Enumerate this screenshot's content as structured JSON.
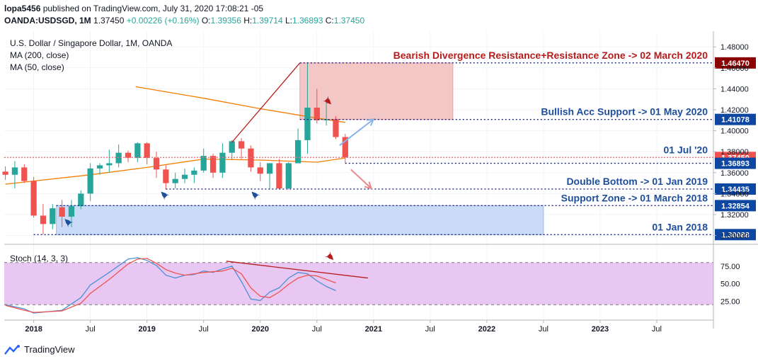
{
  "header": {
    "publisher": "lopa5456",
    "published_text": " published on TradingView.com, July 31, 2020 17:08:21 -05",
    "symbol": "OANDA:USDSGD, 1M",
    "last": "1.37450",
    "change": "+0.00226 (+0.16%)",
    "open_label": "O:",
    "open": "1.39356",
    "high_label": "H:",
    "high": "1.39714",
    "low_label": "L:",
    "low": "1.36893",
    "close_label": "C:",
    "close": "1.37450"
  },
  "legend": {
    "title": "U.S. Dollar / Singapore Dollar, 1M, OANDA",
    "ma200": "MA (200, close)",
    "ma50": "MA (50, close)",
    "stoch": "Stoch (14, 3, 3)"
  },
  "footer": {
    "brand": "TradingView"
  },
  "colors": {
    "up": "#26a69a",
    "down": "#ef5350",
    "ma50": "#f57c00",
    "resistance_zone": "#f4c7c7",
    "support_zone": "#c9dbf6",
    "stoch_band": "#e8c8f2",
    "stoch_k": "#4a8fd6",
    "stoch_d": "#ef5350",
    "annot_red": "#b71c1c",
    "annot_blue": "#1e4e9c",
    "tag_red": "#8b0000",
    "tag_blue": "#0d47a1"
  },
  "chart_data": {
    "type": "candlestick",
    "title": "U.S. Dollar / Singapore Dollar, 1M, OANDA",
    "price_ylim": [
      1.295,
      1.495
    ],
    "price_ticks": [
      "1.48000",
      "1.46000",
      "1.44000",
      "1.42000",
      "1.40000",
      "1.38000",
      "1.36000",
      "1.34000",
      "1.32000",
      "1.30000"
    ],
    "x_ticks": [
      {
        "label": "2018",
        "t": 2018.0
      },
      {
        "label": "Jul",
        "t": 2018.5
      },
      {
        "label": "2019",
        "t": 2019.0
      },
      {
        "label": "Jul",
        "t": 2019.5
      },
      {
        "label": "2020",
        "t": 2020.0
      },
      {
        "label": "Jul",
        "t": 2020.5
      },
      {
        "label": "2021",
        "t": 2021.0
      },
      {
        "label": "Jul",
        "t": 2021.5
      },
      {
        "label": "2022",
        "t": 2022.0
      },
      {
        "label": "Jul",
        "t": 2022.5
      },
      {
        "label": "2023",
        "t": 2023.0
      },
      {
        "label": "Jul",
        "t": 2023.5
      }
    ],
    "x_range": [
      2017.74,
      2024.0
    ],
    "candles": [
      {
        "t": 2017.75,
        "o": 1.361,
        "h": 1.366,
        "l": 1.353,
        "c": 1.358
      },
      {
        "t": 2017.8333,
        "o": 1.358,
        "h": 1.371,
        "l": 1.345,
        "c": 1.365
      },
      {
        "t": 2017.9167,
        "o": 1.365,
        "h": 1.368,
        "l": 1.35,
        "c": 1.352
      },
      {
        "t": 2018.0,
        "o": 1.352,
        "h": 1.356,
        "l": 1.317,
        "c": 1.319
      },
      {
        "t": 2018.0833,
        "o": 1.319,
        "h": 1.33,
        "l": 1.301,
        "c": 1.311
      },
      {
        "t": 2018.1667,
        "o": 1.311,
        "h": 1.33,
        "l": 1.306,
        "c": 1.326
      },
      {
        "t": 2018.25,
        "o": 1.327,
        "h": 1.334,
        "l": 1.308,
        "c": 1.318
      },
      {
        "t": 2018.3333,
        "o": 1.318,
        "h": 1.334,
        "l": 1.308,
        "c": 1.328
      },
      {
        "t": 2018.4167,
        "o": 1.328,
        "h": 1.343,
        "l": 1.325,
        "c": 1.34
      },
      {
        "t": 2018.5,
        "o": 1.34,
        "h": 1.369,
        "l": 1.333,
        "c": 1.364
      },
      {
        "t": 2018.5833,
        "o": 1.364,
        "h": 1.369,
        "l": 1.358,
        "c": 1.367
      },
      {
        "t": 2018.6667,
        "o": 1.367,
        "h": 1.382,
        "l": 1.36,
        "c": 1.369
      },
      {
        "t": 2018.75,
        "o": 1.369,
        "h": 1.387,
        "l": 1.365,
        "c": 1.379
      },
      {
        "t": 2018.8333,
        "o": 1.379,
        "h": 1.381,
        "l": 1.37,
        "c": 1.374
      },
      {
        "t": 2018.9167,
        "o": 1.374,
        "h": 1.389,
        "l": 1.37,
        "c": 1.388
      },
      {
        "t": 2019.0,
        "o": 1.388,
        "h": 1.389,
        "l": 1.368,
        "c": 1.374
      },
      {
        "t": 2019.0833,
        "o": 1.374,
        "h": 1.38,
        "l": 1.355,
        "c": 1.363
      },
      {
        "t": 2019.1667,
        "o": 1.363,
        "h": 1.367,
        "l": 1.344,
        "c": 1.35
      },
      {
        "t": 2019.25,
        "o": 1.35,
        "h": 1.36,
        "l": 1.345,
        "c": 1.354
      },
      {
        "t": 2019.3333,
        "o": 1.354,
        "h": 1.364,
        "l": 1.35,
        "c": 1.358
      },
      {
        "t": 2019.4167,
        "o": 1.358,
        "h": 1.365,
        "l": 1.35,
        "c": 1.362
      },
      {
        "t": 2019.5,
        "o": 1.362,
        "h": 1.383,
        "l": 1.36,
        "c": 1.376
      },
      {
        "t": 2019.5833,
        "o": 1.376,
        "h": 1.378,
        "l": 1.355,
        "c": 1.36
      },
      {
        "t": 2019.6667,
        "o": 1.36,
        "h": 1.388,
        "l": 1.355,
        "c": 1.379
      },
      {
        "t": 2019.75,
        "o": 1.379,
        "h": 1.391,
        "l": 1.372,
        "c": 1.39
      },
      {
        "t": 2019.8333,
        "o": 1.39,
        "h": 1.393,
        "l": 1.373,
        "c": 1.383
      },
      {
        "t": 2019.9167,
        "o": 1.383,
        "h": 1.386,
        "l": 1.361,
        "c": 1.365
      },
      {
        "t": 2020.0,
        "o": 1.365,
        "h": 1.37,
        "l": 1.352,
        "c": 1.359
      },
      {
        "t": 2020.0833,
        "o": 1.359,
        "h": 1.368,
        "l": 1.344,
        "c": 1.369
      },
      {
        "t": 2020.1667,
        "o": 1.369,
        "h": 1.373,
        "l": 1.344,
        "c": 1.345
      },
      {
        "t": 2020.25,
        "o": 1.345,
        "h": 1.37,
        "l": 1.344,
        "c": 1.369
      },
      {
        "t": 2020.3333,
        "o": 1.369,
        "h": 1.402,
        "l": 1.369,
        "c": 1.391
      },
      {
        "t": 2020.4167,
        "o": 1.391,
        "h": 1.465,
        "l": 1.378,
        "c": 1.422
      },
      {
        "t": 2020.5,
        "o": 1.422,
        "h": 1.44,
        "l": 1.407,
        "c": 1.41
      },
      {
        "t": 2020.5833,
        "o": 1.41,
        "h": 1.43,
        "l": 1.405,
        "c": 1.411
      },
      {
        "t": 2020.6667,
        "o": 1.411,
        "h": 1.414,
        "l": 1.392,
        "c": 1.394
      },
      {
        "t": 2020.75,
        "o": 1.394,
        "h": 1.397,
        "l": 1.369,
        "c": 1.3745
      }
    ],
    "ma50": [
      {
        "t": 2017.75,
        "v": 1.349
      },
      {
        "t": 2018.0,
        "v": 1.352
      },
      {
        "t": 2018.5,
        "v": 1.358
      },
      {
        "t": 2019.0,
        "v": 1.365
      },
      {
        "t": 2019.5,
        "v": 1.373
      },
      {
        "t": 2020.0,
        "v": 1.372
      },
      {
        "t": 2020.5,
        "v": 1.37
      },
      {
        "t": 2020.75,
        "v": 1.374
      }
    ],
    "ma200": [
      {
        "t": 2018.9,
        "v": 1.442
      },
      {
        "t": 2019.5,
        "v": 1.431
      },
      {
        "t": 2020.0,
        "v": 1.421
      },
      {
        "t": 2020.5,
        "v": 1.412
      },
      {
        "t": 2020.75,
        "v": 1.408
      }
    ],
    "stoch_ylim": [
      0,
      100
    ],
    "stoch_ticks": [
      "75.00",
      "50.00",
      "25.00"
    ],
    "stoch_bands": [
      80,
      20
    ],
    "stoch_k": [
      {
        "t": 2017.75,
        "v": 20
      },
      {
        "t": 2017.9167,
        "v": 14
      },
      {
        "t": 2018.0,
        "v": 8
      },
      {
        "t": 2018.25,
        "v": 12
      },
      {
        "t": 2018.4167,
        "v": 30
      },
      {
        "t": 2018.5,
        "v": 48
      },
      {
        "t": 2018.6667,
        "v": 66
      },
      {
        "t": 2018.8333,
        "v": 85
      },
      {
        "t": 2018.9167,
        "v": 87
      },
      {
        "t": 2019.0,
        "v": 83
      },
      {
        "t": 2019.0833,
        "v": 76
      },
      {
        "t": 2019.1667,
        "v": 62
      },
      {
        "t": 2019.25,
        "v": 58
      },
      {
        "t": 2019.3333,
        "v": 62
      },
      {
        "t": 2019.4167,
        "v": 63
      },
      {
        "t": 2019.5,
        "v": 68
      },
      {
        "t": 2019.5833,
        "v": 66
      },
      {
        "t": 2019.6667,
        "v": 71
      },
      {
        "t": 2019.75,
        "v": 75
      },
      {
        "t": 2019.8333,
        "v": 53
      },
      {
        "t": 2019.9167,
        "v": 28
      },
      {
        "t": 2020.0,
        "v": 26
      },
      {
        "t": 2020.0833,
        "v": 38
      },
      {
        "t": 2020.1667,
        "v": 44
      },
      {
        "t": 2020.25,
        "v": 58
      },
      {
        "t": 2020.3333,
        "v": 66
      },
      {
        "t": 2020.4167,
        "v": 64
      },
      {
        "t": 2020.5,
        "v": 54
      },
      {
        "t": 2020.5833,
        "v": 46
      },
      {
        "t": 2020.6667,
        "v": 40
      }
    ],
    "stoch_d": [
      {
        "t": 2017.75,
        "v": 19
      },
      {
        "t": 2017.9167,
        "v": 12
      },
      {
        "t": 2018.0,
        "v": 9
      },
      {
        "t": 2018.25,
        "v": 11
      },
      {
        "t": 2018.4167,
        "v": 22
      },
      {
        "t": 2018.5,
        "v": 36
      },
      {
        "t": 2018.6667,
        "v": 56
      },
      {
        "t": 2018.8333,
        "v": 78
      },
      {
        "t": 2018.9167,
        "v": 85
      },
      {
        "t": 2019.0,
        "v": 86
      },
      {
        "t": 2019.0833,
        "v": 79
      },
      {
        "t": 2019.1667,
        "v": 70
      },
      {
        "t": 2019.25,
        "v": 65
      },
      {
        "t": 2019.3333,
        "v": 62
      },
      {
        "t": 2019.4167,
        "v": 64
      },
      {
        "t": 2019.5,
        "v": 66
      },
      {
        "t": 2019.5833,
        "v": 67
      },
      {
        "t": 2019.6667,
        "v": 68
      },
      {
        "t": 2019.75,
        "v": 72
      },
      {
        "t": 2019.8333,
        "v": 64
      },
      {
        "t": 2019.9167,
        "v": 44
      },
      {
        "t": 2020.0,
        "v": 32
      },
      {
        "t": 2020.0833,
        "v": 30
      },
      {
        "t": 2020.1667,
        "v": 38
      },
      {
        "t": 2020.25,
        "v": 49
      },
      {
        "t": 2020.3333,
        "v": 58
      },
      {
        "t": 2020.4167,
        "v": 62
      },
      {
        "t": 2020.5,
        "v": 61
      },
      {
        "t": 2020.5833,
        "v": 56
      },
      {
        "t": 2020.6667,
        "v": 51
      }
    ],
    "zones": {
      "resistance": {
        "t0": 2020.35,
        "t1": 2021.7,
        "top": 1.4647,
        "bottom": 1.41078
      },
      "support": {
        "t0": 2018.2,
        "t1": 2022.5,
        "top": 1.32854,
        "bottom": 1.30088
      }
    },
    "levels": [
      {
        "key": "r1",
        "price": 1.4647,
        "t0": 2020.35,
        "label": "Bearish Divergence Resistance+Resistance Zone -> 02 March 2020",
        "tag": "1.46470",
        "color": "red"
      },
      {
        "key": "r2",
        "price": 1.41078,
        "t0": 2020.35,
        "label": "Bullish Acc Support -> 01 May 2020",
        "tag": "1.41078",
        "color": "blue"
      },
      {
        "key": "cur",
        "price": 1.3745,
        "t0": 2017.74,
        "label": "01 Jul '20",
        "tag": "1.37450",
        "color": "red"
      },
      {
        "key": "low",
        "price": 1.36893,
        "t0": 2020.75,
        "label": "",
        "tag": "1.36893",
        "color": "blue"
      },
      {
        "key": "db",
        "price": 1.34435,
        "t0": 2019.1667,
        "label": "Double Bottom -> 01 Jan 2019",
        "tag": "1.34435",
        "color": "blue"
      },
      {
        "key": "sz",
        "price": 1.32854,
        "t0": 2018.2,
        "label": "Support Zone -> 01 March 2018",
        "tag": "1.32854",
        "color": "blue"
      },
      {
        "key": "jan18",
        "price": 1.30088,
        "t0": 2018.0,
        "label": "01 Jan 2018",
        "tag": "1.30088",
        "color": "blue"
      }
    ],
    "trendlines": [
      {
        "kind": "price",
        "t0": 2019.75,
        "v0": 1.389,
        "t1": 2020.35,
        "v1": 1.4647,
        "color": "annot_red"
      },
      {
        "kind": "stoch",
        "t0": 2019.7,
        "v0": 82,
        "t1": 2020.95,
        "v1": 58,
        "color": "annot_red"
      }
    ],
    "arrows": [
      {
        "dir": "up",
        "t0": 2020.7,
        "v0": 1.386,
        "t1": 2021.0,
        "v1": 1.411,
        "color": "#8ab4e8"
      },
      {
        "dir": "down",
        "t0": 2020.8,
        "v0": 1.363,
        "t1": 2020.98,
        "v1": 1.345,
        "color": "#e78a8a"
      }
    ],
    "markers": [
      {
        "t": 2018.3,
        "v": 1.313,
        "type": "rocket-up"
      },
      {
        "t": 2019.15,
        "v": 1.339,
        "type": "rocket-up"
      },
      {
        "t": 2019.95,
        "v": 1.339,
        "type": "rocket-up"
      },
      {
        "t": 2020.6,
        "v": 1.428,
        "type": "rocket-down"
      }
    ]
  }
}
